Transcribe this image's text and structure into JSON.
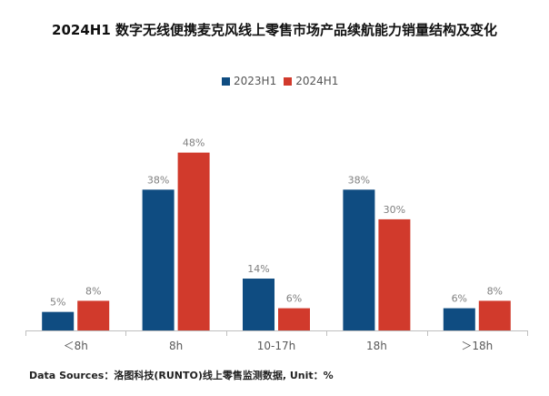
{
  "colors": {
    "series_2023": "#0f4c81",
    "series_2024": "#d13a2c",
    "axis": "#bfbfbf",
    "label": "#7f7f7f"
  },
  "chart_data": {
    "type": "bar",
    "title": "2024H1 数字无线便携麦克风线上零售市场产品续航能力销量结构及变化",
    "categories": [
      "＜8h",
      "8h",
      "10-17h",
      "18h",
      "＞18h"
    ],
    "series": [
      {
        "name": "2023H1",
        "values": [
          5,
          38,
          14,
          38,
          6
        ],
        "labels": [
          "5%",
          "38%",
          "14%",
          "38%",
          "6%"
        ]
      },
      {
        "name": "2024H1",
        "values": [
          8,
          48,
          6,
          30,
          8
        ],
        "labels": [
          "8%",
          "48%",
          "6%",
          "30%",
          "8%"
        ]
      }
    ],
    "ylim": [
      0,
      60
    ],
    "grid": false,
    "legend_position": "top-center",
    "data_labels": true
  },
  "source_text": "Data Sources：洛图科技(RUNTO)线上零售监测数据, Unit：%"
}
